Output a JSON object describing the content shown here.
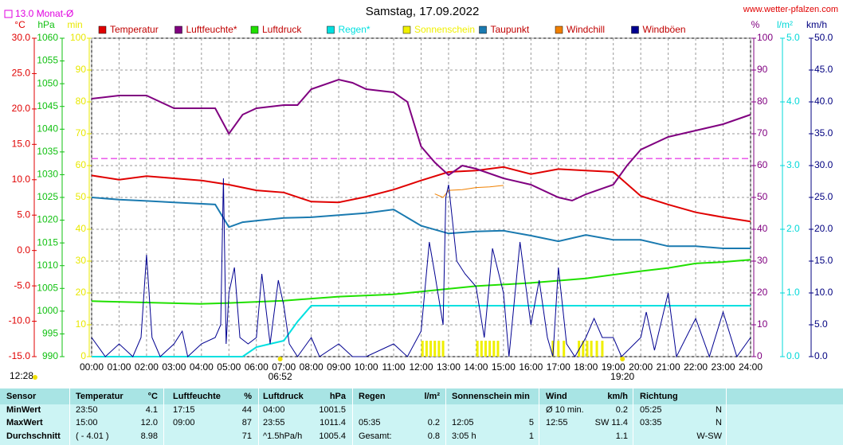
{
  "chart_data": {
    "type": "line",
    "title": "Samstag, 17.09.2022",
    "source": "www.wetter-pfalzen.com",
    "monthly_avg": {
      "label": "13.0 Monat-Ø",
      "value": 13.0,
      "axis": "°C",
      "color": "#e000e0"
    },
    "xlim": [
      0,
      24
    ],
    "xticks": [
      {
        "value": 0,
        "label": "00:00"
      },
      {
        "value": 1,
        "label": "01:00"
      },
      {
        "value": 2,
        "label": "02:00"
      },
      {
        "value": 3,
        "label": "03:00"
      },
      {
        "value": 4,
        "label": "04:00"
      },
      {
        "value": 5,
        "label": "05:00"
      },
      {
        "value": 6,
        "label": "06:00"
      },
      {
        "value": 7,
        "label": "07:00"
      },
      {
        "value": 8,
        "label": "08:00"
      },
      {
        "value": 9,
        "label": "09:00"
      },
      {
        "value": 10,
        "label": "10:00"
      },
      {
        "value": 11,
        "label": "11:00"
      },
      {
        "value": 12,
        "label": "12:00"
      },
      {
        "value": 13,
        "label": "13:00"
      },
      {
        "value": 14,
        "label": "14:00"
      },
      {
        "value": 15,
        "label": "15:00"
      },
      {
        "value": 16,
        "label": "16:00"
      },
      {
        "value": 17,
        "label": "17:00"
      },
      {
        "value": 18,
        "label": "18:00"
      },
      {
        "value": 19,
        "label": "19:00"
      },
      {
        "value": 20,
        "label": "20:00"
      },
      {
        "value": 21,
        "label": "21:00"
      },
      {
        "value": 22,
        "label": "22:00"
      },
      {
        "value": 23,
        "label": "23:00"
      },
      {
        "value": 24,
        "label": "24:00"
      }
    ],
    "axes": [
      {
        "label": "°C",
        "side": "left",
        "color": "#e00000",
        "lim": [
          -15,
          30
        ],
        "ticks": [
          {
            "value": -15,
            "label": "-15.0"
          },
          {
            "value": -10,
            "label": "-10.0"
          },
          {
            "value": -5,
            "label": "-5.0"
          },
          {
            "value": 0,
            "label": "0.0"
          },
          {
            "value": 5,
            "label": "5.0"
          },
          {
            "value": 10,
            "label": "10.0"
          },
          {
            "value": 15,
            "label": "15.0"
          },
          {
            "value": 20,
            "label": "20.0"
          },
          {
            "value": 25,
            "label": "25.0"
          },
          {
            "value": 30,
            "label": "30.0"
          }
        ]
      },
      {
        "label": "hPa",
        "side": "left",
        "color": "#10c010",
        "lim": [
          990,
          1060
        ],
        "ticks": [
          990,
          995,
          1000,
          1005,
          1010,
          1015,
          1020,
          1025,
          1030,
          1035,
          1040,
          1045,
          1050,
          1055,
          1060
        ]
      },
      {
        "label": "min",
        "side": "left",
        "color": "#e8e800",
        "lim": [
          0,
          100
        ],
        "ticks": [
          0,
          10,
          20,
          30,
          40,
          50,
          60,
          70,
          80,
          90,
          100
        ]
      },
      {
        "label": "%",
        "side": "right",
        "color": "#800080",
        "lim": [
          0,
          100
        ],
        "ticks": [
          0,
          10,
          20,
          30,
          40,
          50,
          60,
          70,
          80,
          90,
          100
        ],
        "grid": true
      },
      {
        "label": "l/m²",
        "side": "right",
        "color": "#00d8d8",
        "lim": [
          0,
          5
        ],
        "ticks": [
          {
            "value": 0,
            "label": "0.0"
          },
          {
            "value": 1,
            "label": "1.0"
          },
          {
            "value": 2,
            "label": "2.0"
          },
          {
            "value": 3,
            "label": "3.0"
          },
          {
            "value": 4,
            "label": "4.0"
          },
          {
            "value": 5,
            "label": "5.0"
          }
        ]
      },
      {
        "label": "km/h",
        "side": "right",
        "color": "#000080",
        "lim": [
          0,
          50
        ],
        "ticks": [
          {
            "value": 0,
            "label": "0.0"
          },
          {
            "value": 5,
            "label": "5.0"
          },
          {
            "value": 10,
            "label": "10.0"
          },
          {
            "value": 15,
            "label": "15.0"
          },
          {
            "value": 20,
            "label": "20.0"
          },
          {
            "value": 25,
            "label": "25.0"
          },
          {
            "value": 30,
            "label": "30.0"
          },
          {
            "value": 35,
            "label": "35.0"
          },
          {
            "value": 40,
            "label": "40.0"
          },
          {
            "value": 45,
            "label": "45.0"
          },
          {
            "value": 50,
            "label": "50.0"
          }
        ]
      }
    ],
    "series": [
      {
        "name": "Temperatur",
        "color": "#e00000",
        "axis": "°C",
        "x": [
          0,
          1,
          2,
          3,
          4,
          5,
          6,
          7,
          8,
          9,
          10,
          11,
          12,
          13,
          14,
          15,
          16,
          17,
          18,
          19,
          20,
          21,
          22,
          23,
          24
        ],
        "values": [
          10.6,
          10.0,
          10.5,
          10.2,
          9.9,
          9.3,
          8.5,
          8.2,
          6.9,
          6.8,
          7.6,
          8.6,
          9.9,
          11.1,
          11.3,
          11.8,
          10.8,
          11.5,
          11.3,
          11.1,
          7.7,
          6.5,
          5.4,
          4.7,
          4.1
        ]
      },
      {
        "name": "Luftfeuchte*",
        "color": "#800080",
        "axis": "%",
        "x": [
          0,
          1,
          2,
          3,
          4,
          4.5,
          5,
          5.5,
          6,
          7,
          7.5,
          8,
          9,
          9.5,
          10,
          11,
          11.5,
          12,
          12.5,
          13,
          13.5,
          14,
          15,
          16,
          17,
          17.5,
          18,
          19,
          19.5,
          20,
          21,
          22,
          23,
          24
        ],
        "values": [
          81,
          82,
          82,
          78,
          78,
          78,
          70,
          76,
          78,
          79,
          79,
          84,
          87,
          86,
          84,
          83,
          80,
          66,
          61,
          57,
          60,
          59,
          56,
          54,
          50,
          49,
          51,
          54,
          60,
          65,
          69,
          71,
          73,
          76
        ]
      },
      {
        "name": "Luftdruck",
        "color": "#20e000",
        "axis": "hPa",
        "x": [
          0,
          4,
          5,
          7,
          9,
          11,
          12,
          14,
          16,
          18,
          20,
          21,
          22,
          23,
          24
        ],
        "values": [
          1002.2,
          1001.6,
          1001.8,
          1002.3,
          1003.2,
          1003.7,
          1004.3,
          1005.5,
          1006.2,
          1007.2,
          1008.8,
          1009.5,
          1010.5,
          1010.8,
          1011.3
        ]
      },
      {
        "name": "Regen*",
        "color": "#00e0e0",
        "axis": "l/m²",
        "x": [
          0,
          5.5,
          6,
          6.5,
          7,
          7.5,
          8,
          24
        ],
        "values": [
          0,
          0,
          0.15,
          0.2,
          0.25,
          0.55,
          0.8,
          0.8
        ]
      },
      {
        "name": "Sonnenschein",
        "color": "#f0f000",
        "axis": "min",
        "style": "bar",
        "x": [
          12.05,
          12.2,
          12.35,
          12.5,
          12.65,
          12.8,
          14.05,
          14.2,
          14.35,
          14.5,
          14.65,
          14.8,
          16.8,
          17.0,
          17.2,
          17.75,
          17.9,
          18.05,
          18.2,
          18.4,
          18.6
        ],
        "values": [
          5,
          5,
          5,
          5,
          5,
          5,
          5,
          5,
          5,
          5,
          5,
          5,
          5,
          5,
          5,
          5,
          5,
          5,
          5,
          5,
          5
        ]
      },
      {
        "name": "Taupunkt",
        "color": "#1a7ab0",
        "axis": "°C",
        "x": [
          0,
          1,
          2,
          3,
          4,
          4.5,
          5,
          5.5,
          6,
          7,
          8,
          9,
          10,
          11,
          12,
          13,
          14,
          15,
          16,
          17,
          18,
          19,
          20,
          21,
          22,
          23,
          24
        ],
        "values": [
          7.5,
          7.2,
          7.0,
          6.8,
          6.6,
          6.5,
          3.3,
          4.0,
          4.2,
          4.6,
          4.7,
          5.0,
          5.3,
          5.8,
          3.5,
          2.4,
          2.7,
          2.8,
          2.1,
          1.3,
          2.2,
          1.5,
          1.5,
          0.6,
          0.6,
          0.3,
          0.3
        ]
      },
      {
        "name": "Windchill",
        "color": "#f08000",
        "axis": "°C",
        "x": [
          12.5,
          12.8,
          13,
          13.5,
          14,
          14.5,
          15
        ],
        "values": [
          8.0,
          7.5,
          8.5,
          8.6,
          8.9,
          9.0,
          9.2
        ]
      },
      {
        "name": "Windböen",
        "color": "#000090",
        "axis": "km/h",
        "x": [
          0,
          0.5,
          1,
          1.5,
          1.8,
          2,
          2.2,
          2.5,
          3,
          3.3,
          3.5,
          4,
          4.5,
          4.7,
          4.8,
          4.9,
          5,
          5.2,
          5.4,
          5.7,
          6,
          6.2,
          6.5,
          6.8,
          7,
          7.2,
          7.5,
          8,
          8.3,
          9,
          9.5,
          10,
          11,
          11.5,
          12,
          12.3,
          12.5,
          12.8,
          12.9,
          13,
          13.3,
          13.6,
          14,
          14.3,
          14.6,
          15,
          15.2,
          15.6,
          16,
          16.3,
          16.6,
          16.8,
          17,
          17.3,
          17.6,
          18,
          18.3,
          18.6,
          19,
          19.3,
          20,
          20.2,
          20.5,
          21,
          21.3,
          22,
          22.5,
          23,
          23.5,
          24
        ],
        "values": [
          3,
          0,
          2,
          0,
          3,
          16,
          3,
          0,
          2,
          4,
          0,
          2,
          3,
          5,
          28,
          2,
          10,
          14,
          3,
          2,
          3,
          13,
          2,
          12,
          8,
          2,
          0,
          3,
          0,
          2,
          0,
          0,
          2,
          0,
          4,
          18,
          13,
          5,
          25,
          27,
          15,
          13,
          11,
          3,
          17,
          10,
          0,
          18,
          5,
          12,
          3,
          0,
          14,
          2,
          0,
          3,
          6,
          3,
          3,
          0,
          3,
          7,
          1,
          10,
          0,
          6,
          0,
          7,
          0,
          3
        ]
      }
    ],
    "annotations": [
      {
        "text": "06:52",
        "x": 6.867
      },
      {
        "text": "19:20",
        "x": 19.333
      }
    ],
    "daylight": "12:28"
  },
  "summary": {
    "header": {
      "sensor": "Sensor",
      "temp_time": "Temperatur",
      "temp": "°C",
      "hum_time": "Luftfeuchte",
      "hum": "%",
      "press_time": "Luftdruck",
      "press": "hPa",
      "rain_time": "Regen",
      "rain": "l/m²",
      "sun_time": "Sonnenschein min",
      "wind_time": "Wind",
      "wind": "km/h",
      "dir_time": "Richtung"
    },
    "rows": [
      {
        "sensor": "MinWert",
        "temp_time": "23:50",
        "temp": "4.1",
        "hum_time": "17:15",
        "hum": "44",
        "press_time": "04:00",
        "press": "1001.5",
        "wind_time": "Ø 10 min.",
        "wind": "0.2",
        "dir_time": "05:25",
        "dir": "N"
      },
      {
        "sensor": "MaxWert",
        "temp_time": "15:00",
        "temp": "12.0",
        "hum_time": "09:00",
        "hum": "87",
        "press_time": "23:55",
        "press": "1011.4",
        "rain_time": "05:35",
        "rain": "0.2",
        "sun_time": "12:05",
        "sun": "5",
        "wind_time": "12:55",
        "wind": "SW 11.4",
        "dir_time": "03:35",
        "dir": "N"
      },
      {
        "sensor": "Durchschnitt",
        "temp_time": "( - 4.01 )",
        "temp": "8.98",
        "hum": "71",
        "press_time": "^1.5hPa/h",
        "press": "1005.4",
        "rain_time": "Gesamt:",
        "rain": "0.8",
        "sun_time": "3:05 h",
        "sun": "1",
        "wind": "1.1",
        "dir": "W-SW"
      }
    ]
  }
}
